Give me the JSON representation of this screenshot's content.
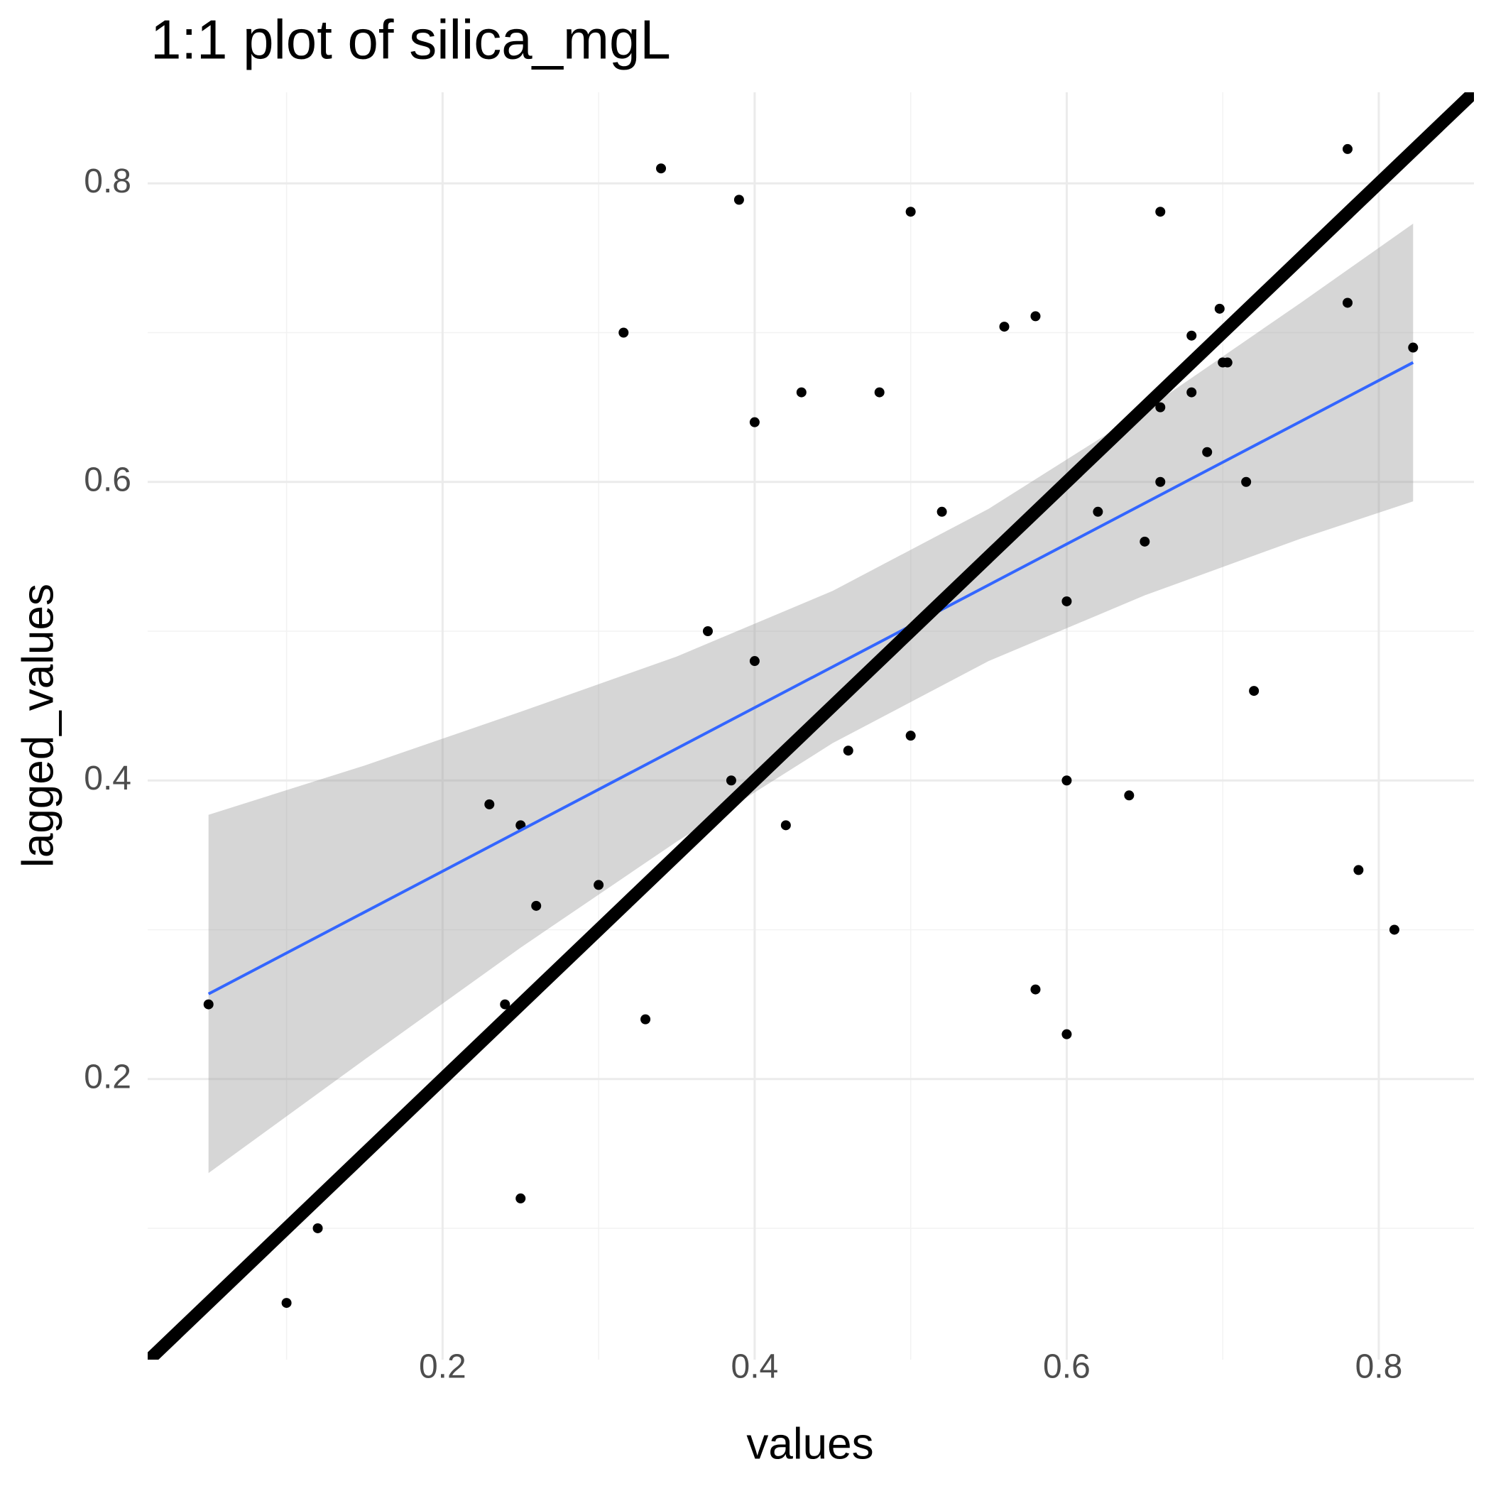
{
  "chart_data": {
    "type": "scatter",
    "title": "1:1 plot of silica_mgL",
    "x_label": "values",
    "y_label": "lagged_values",
    "x": [
      0.05,
      0.1,
      0.12,
      0.23,
      0.24,
      0.25,
      0.25,
      0.26,
      0.3,
      0.316,
      0.33,
      0.34,
      0.37,
      0.385,
      0.39,
      0.4,
      0.4,
      0.42,
      0.43,
      0.46,
      0.48,
      0.5,
      0.5,
      0.52,
      0.56,
      0.58,
      0.58,
      0.6,
      0.6,
      0.6,
      0.62,
      0.64,
      0.65,
      0.66,
      0.66,
      0.66,
      0.68,
      0.68,
      0.69,
      0.698,
      0.7,
      0.703,
      0.715,
      0.72,
      0.78,
      0.78,
      0.787,
      0.81,
      0.822
    ],
    "y": [
      0.25,
      0.05,
      0.1,
      0.384,
      0.25,
      0.37,
      0.12,
      0.316,
      0.33,
      0.7,
      0.24,
      0.81,
      0.5,
      0.4,
      0.789,
      0.64,
      0.48,
      0.37,
      0.66,
      0.42,
      0.66,
      0.781,
      0.43,
      0.58,
      0.704,
      0.711,
      0.26,
      0.52,
      0.4,
      0.23,
      0.58,
      0.39,
      0.56,
      0.781,
      0.65,
      0.6,
      0.698,
      0.66,
      0.62,
      0.716,
      0.68,
      0.68,
      0.6,
      0.46,
      0.823,
      0.72,
      0.34,
      0.3,
      0.69
    ],
    "point_color": "#000000",
    "band": {
      "x": [
        0.05,
        0.15,
        0.25,
        0.35,
        0.45,
        0.55,
        0.65,
        0.75,
        0.822
      ],
      "lower": [
        0.137,
        0.213,
        0.288,
        0.359,
        0.425,
        0.48,
        0.524,
        0.562,
        0.587
      ],
      "upper": [
        0.377,
        0.41,
        0.446,
        0.483,
        0.527,
        0.582,
        0.648,
        0.72,
        0.773
      ],
      "color": "#999999"
    },
    "smooth": {
      "x": [
        0.05,
        0.822
      ],
      "y": [
        0.257,
        0.68
      ],
      "color": "#3366ff"
    },
    "reference_line": {
      "slope": 1,
      "intercept": 0,
      "color": "#000000"
    },
    "xlim": [
      0.011,
      0.861
    ],
    "ylim": [
      0.012,
      0.861
    ],
    "xticks": [
      0.2,
      0.4,
      0.6,
      0.8
    ],
    "yticks": [
      0.2,
      0.4,
      0.6,
      0.8
    ],
    "xminor": [
      0.1,
      0.3,
      0.5,
      0.7
    ],
    "yminor": [
      0.1,
      0.3,
      0.5,
      0.7
    ],
    "grid": true
  }
}
